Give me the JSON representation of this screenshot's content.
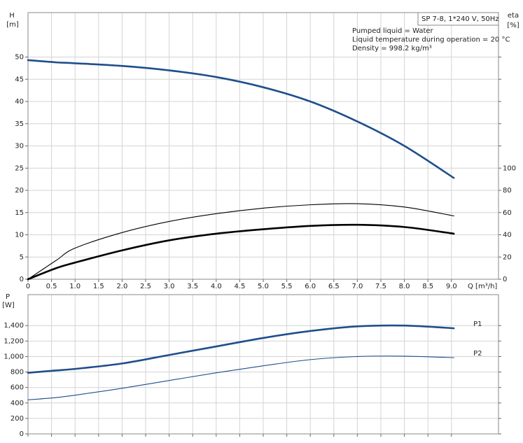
{
  "chart_data": [
    {
      "type": "line",
      "title": "SP 7-8, 1*240 V, 50Hz",
      "annotations": [
        "Pumped liquid = Water",
        "Liquid temperature during operation = 20 °C",
        "Density = 998.2 kg/m³"
      ],
      "y_label": "H",
      "y_unit": "[m]",
      "y2_label": "eta",
      "y2_unit": "[%]",
      "x_label": "Q [m³/h]",
      "x": [
        0,
        0.6,
        1,
        2,
        3,
        4,
        5,
        6,
        7,
        8,
        9.05
      ],
      "xlim": [
        0,
        10
      ],
      "xticks": [
        0,
        {
          "value": 0.5,
          "label": "0.5"
        },
        {
          "value": 1,
          "label": "1.0"
        },
        {
          "value": 1.5,
          "label": "1.5"
        },
        {
          "value": 2,
          "label": "2.0"
        },
        {
          "value": 2.5,
          "label": "2.5"
        },
        {
          "value": 3,
          "label": "3.0"
        },
        {
          "value": 3.5,
          "label": "3.5"
        },
        {
          "value": 4,
          "label": "4.0"
        },
        {
          "value": 4.5,
          "label": "4.5"
        },
        {
          "value": 5,
          "label": "5.0"
        },
        {
          "value": 5.5,
          "label": "5.5"
        },
        {
          "value": 6,
          "label": "6.0"
        },
        {
          "value": 6.5,
          "label": "6.5"
        },
        {
          "value": 7,
          "label": "7.0"
        },
        {
          "value": 7.5,
          "label": "7.5"
        },
        {
          "value": 8,
          "label": "8.0"
        },
        {
          "value": 8.5,
          "label": "8.5"
        },
        {
          "value": 9,
          "label": "9.0"
        }
      ],
      "ylim": [
        0,
        60
      ],
      "yticks": [
        0,
        5,
        10,
        15,
        20,
        25,
        30,
        35,
        40,
        45,
        50
      ],
      "y2lim": [
        0,
        240
      ],
      "y2ticks": [
        0,
        20,
        40,
        60,
        80,
        100
      ],
      "grid": true,
      "series": [
        {
          "color": "#1f4e8c",
          "values": [
            49.3,
            48.8,
            48.6,
            48.0,
            47.0,
            45.5,
            43.2,
            40.0,
            35.5,
            30.0,
            22.8
          ]
        },
        {
          "color": "#000000",
          "axis": "y2",
          "values": [
            0,
            17,
            28,
            42,
            52,
            59,
            64,
            67,
            68,
            65,
            57
          ]
        },
        {
          "color": "#000000",
          "axis": "y2",
          "values": [
            0,
            10,
            15,
            26,
            35,
            41,
            45,
            48,
            49,
            47,
            41
          ]
        }
      ]
    },
    {
      "type": "line",
      "y_label": "P",
      "y_unit": "[W]",
      "x": [
        0,
        0.6,
        1,
        2,
        3,
        4,
        5,
        6,
        7,
        8,
        9.05
      ],
      "xlim": [
        0,
        10
      ],
      "ylim": [
        0,
        1800
      ],
      "yticks": [
        0,
        200,
        400,
        600,
        800,
        {
          "value": 1000,
          "label": "1,000"
        },
        {
          "value": 1200,
          "label": "1,200"
        },
        {
          "value": 1400,
          "label": "1,400"
        }
      ],
      "grid": true,
      "series": [
        {
          "name": "P1",
          "color": "#1f4e8c",
          "values": [
            790,
            820,
            840,
            910,
            1020,
            1130,
            1240,
            1330,
            1390,
            1400,
            1365
          ]
        },
        {
          "name": "P2",
          "color": "#1f4e8c",
          "values": [
            440,
            470,
            500,
            590,
            690,
            790,
            880,
            960,
            1000,
            1005,
            985
          ]
        }
      ]
    }
  ]
}
